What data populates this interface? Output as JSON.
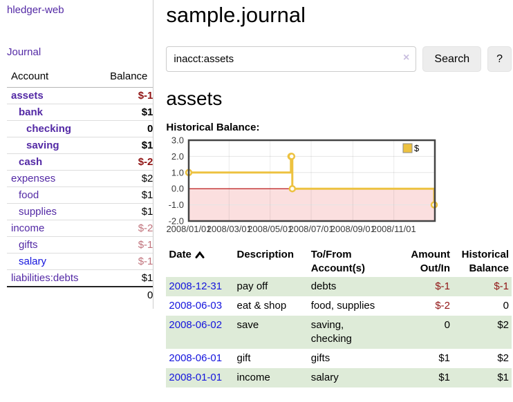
{
  "app": {
    "brand": "hledger-web",
    "nav_journal": "Journal"
  },
  "sidebar": {
    "header": {
      "account": "Account",
      "balance": "Balance"
    },
    "accounts": [
      {
        "name": "assets",
        "balance": "$-1",
        "indent": 1,
        "bold": true,
        "neg": "strong"
      },
      {
        "name": "bank",
        "balance": "$1",
        "indent": 2,
        "bold": true
      },
      {
        "name": "checking",
        "balance": "0",
        "indent": 3,
        "bold": true
      },
      {
        "name": "saving",
        "balance": "$1",
        "indent": 3,
        "bold": true
      },
      {
        "name": "cash",
        "balance": "$-2",
        "indent": 2,
        "bold": true,
        "neg": "strong"
      },
      {
        "name": "expenses",
        "balance": "$2",
        "indent": 1
      },
      {
        "name": "food",
        "balance": "$1",
        "indent": 2
      },
      {
        "name": "supplies",
        "balance": "$1",
        "indent": 2
      },
      {
        "name": "income",
        "balance": "$-2",
        "indent": 1,
        "neg": "muted"
      },
      {
        "name": "gifts",
        "balance": "$-1",
        "indent": 2,
        "neg": "muted"
      },
      {
        "name": "salary",
        "balance": "$-1",
        "indent": 2,
        "neg": "muted",
        "link": "blue"
      },
      {
        "name": "liabilities:debts",
        "balance": "$1",
        "indent": 1
      }
    ],
    "total": "0"
  },
  "header": {
    "title": "sample.journal"
  },
  "search": {
    "value": "inacct:assets",
    "clear_icon": "×",
    "button": "Search",
    "help": "?"
  },
  "account_page": {
    "heading": "assets",
    "chart_label": "Historical Balance:"
  },
  "chart_data": {
    "type": "line",
    "step": true,
    "title": "Historical Balance:",
    "series": [
      {
        "name": "$",
        "color": "#edc240",
        "points": [
          [
            "2008-01-01",
            1.0
          ],
          [
            "2008-06-01",
            2.0
          ],
          [
            "2008-06-02",
            2.0
          ],
          [
            "2008-06-03",
            0.0
          ],
          [
            "2008-12-31",
            -1.0
          ]
        ]
      }
    ],
    "x_range": [
      "2008-01-01",
      "2009-01-01"
    ],
    "x_ticks": [
      "2008/01/01",
      "2008/03/01",
      "2008/05/01",
      "2008/07/01",
      "2008/09/01",
      "2008/11/01"
    ],
    "y_ticks": [
      "3.0",
      "2.0",
      "1.0",
      "0.0",
      "-1.0",
      "-2.0"
    ],
    "ylim": [
      -2.0,
      3.0
    ],
    "grid": true,
    "legend_position": "top-right",
    "colors": {
      "border": "#444444",
      "gridline": "#e5e5e5",
      "negative_region": "#fbdfdf",
      "zero_line": "#b30000",
      "tick_text": "#3a3a3a",
      "marker_fill": "#fffdf5",
      "legend_border": "#8a8a8a"
    }
  },
  "register": {
    "headers": [
      {
        "id": "date",
        "lines": [
          "Date"
        ],
        "align": "left",
        "sorted": "asc"
      },
      {
        "id": "description",
        "lines": [
          "Description"
        ],
        "align": "left"
      },
      {
        "id": "accounts",
        "lines": [
          "To/From",
          "Account(s)"
        ],
        "align": "left"
      },
      {
        "id": "amount",
        "lines": [
          "Amount",
          "Out/In"
        ],
        "align": "right"
      },
      {
        "id": "balance",
        "lines": [
          "Historical",
          "Balance"
        ],
        "align": "right"
      }
    ],
    "rows": [
      {
        "date": "2008-12-31",
        "description": "pay off",
        "accounts": [
          "debts"
        ],
        "amount": "$-1",
        "balance": "$-1"
      },
      {
        "date": "2008-06-03",
        "description": "eat & shop",
        "accounts": [
          "food, supplies"
        ],
        "amount": "$-2",
        "balance": "0"
      },
      {
        "date": "2008-06-02",
        "description": "save",
        "accounts": [
          "saving,",
          "checking"
        ],
        "amount": "0",
        "balance": "$2"
      },
      {
        "date": "2008-06-01",
        "description": "gift",
        "accounts": [
          "gifts"
        ],
        "amount": "$1",
        "balance": "$2"
      },
      {
        "date": "2008-01-01",
        "description": "income",
        "accounts": [
          "salary"
        ],
        "amount": "$1",
        "balance": "$1"
      }
    ]
  }
}
